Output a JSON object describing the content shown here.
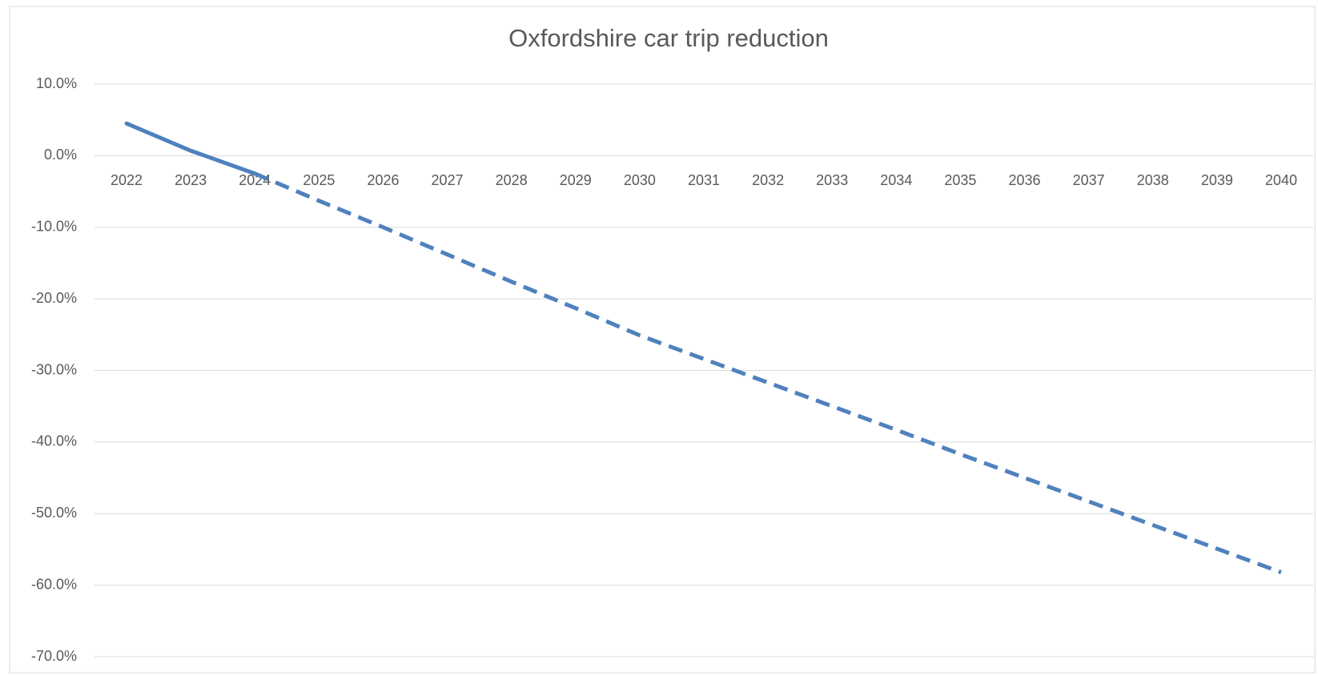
{
  "chart_data": {
    "type": "line",
    "title": "Oxfordshire car trip reduction",
    "categories": [
      "2022",
      "2023",
      "2024",
      "2025",
      "2026",
      "2027",
      "2028",
      "2029",
      "2030",
      "2031",
      "2032",
      "2033",
      "2034",
      "2035",
      "2036",
      "2037",
      "2038",
      "2039",
      "2040"
    ],
    "series": [
      {
        "color": "#4f81bd",
        "dash": false,
        "values": [
          4.5,
          0.7,
          -2.5,
          null,
          null,
          null,
          null,
          null,
          null,
          null,
          null,
          null,
          null,
          null,
          null,
          null,
          null,
          null,
          null
        ]
      },
      {
        "color": "#4f81bd",
        "dash": true,
        "values": [
          null,
          null,
          -2.5,
          -6.3,
          -10.0,
          -13.8,
          -17.6,
          -21.3,
          -25.1,
          -28.4,
          -31.7,
          -35.0,
          -38.3,
          -41.7,
          -45.0,
          -48.3,
          -51.6,
          -54.9,
          -58.2
        ]
      }
    ],
    "ylim": [
      -70,
      10
    ],
    "yticks": [
      {
        "value": 10,
        "label": "10.0%"
      },
      {
        "value": 0,
        "label": "0.0%"
      },
      {
        "value": -10,
        "label": "-10.0%"
      },
      {
        "value": -20,
        "label": "-20.0%"
      },
      {
        "value": -30,
        "label": "-30.0%"
      },
      {
        "value": -40,
        "label": "-40.0%"
      },
      {
        "value": -50,
        "label": "-50.0%"
      },
      {
        "value": -60,
        "label": "-60.0%"
      },
      {
        "value": -70,
        "label": "-70.0%"
      }
    ],
    "grid": true
  }
}
